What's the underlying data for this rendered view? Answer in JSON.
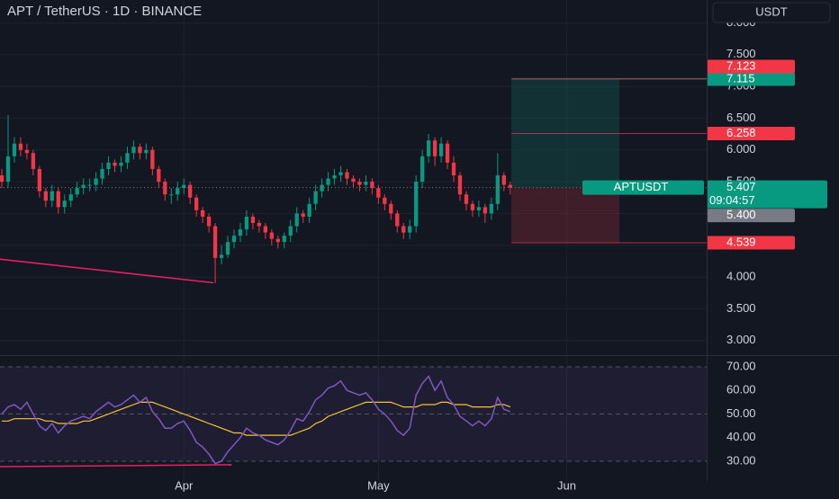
{
  "chart_data": {
    "type": "candlestick",
    "title": "APT / TetherUS · 1D · BINANCE",
    "currency": "USDT",
    "up_color": "#089981",
    "down_color": "#f23645",
    "grid": true,
    "xlim": [
      -0.29,
      112.3
    ],
    "xticks": [
      {
        "value": 29,
        "label": "Apr"
      },
      {
        "value": 60,
        "label": "May"
      },
      {
        "value": 90,
        "label": "Jun"
      }
    ],
    "ylim": [
      2.77,
      8.36
    ],
    "yticks": [
      {
        "value": 3,
        "label": "3.000"
      },
      {
        "value": 3.5,
        "label": "3.500"
      },
      {
        "value": 4,
        "label": "4.000"
      },
      {
        "value": 4.5,
        "label": "4.500"
      },
      {
        "value": 5,
        "label": "5.000"
      },
      {
        "value": 5.5,
        "label": "5.500"
      },
      {
        "value": 6,
        "label": "6.000"
      },
      {
        "value": 6.5,
        "label": "6.500"
      },
      {
        "value": 7,
        "label": "7.000"
      },
      {
        "value": 7.5,
        "label": "7.500"
      },
      {
        "value": 8,
        "label": "8.000"
      }
    ],
    "open": [
      5.6,
      5.5,
      5.9,
      6.1,
      6.0,
      5.95,
      5.7,
      5.35,
      5.2,
      5.35,
      5.1,
      5.2,
      5.3,
      5.4,
      5.45,
      5.45,
      5.55,
      5.7,
      5.8,
      5.75,
      5.8,
      5.95,
      6.05,
      5.95,
      6.0,
      5.7,
      5.5,
      5.3,
      5.3,
      5.4,
      5.45,
      5.25,
      5.05,
      4.95,
      4.8,
      4.3,
      4.35,
      4.55,
      4.65,
      4.75,
      4.95,
      4.85,
      4.8,
      4.7,
      4.6,
      4.55,
      4.65,
      4.8,
      5.0,
      4.95,
      5.15,
      5.35,
      5.45,
      5.55,
      5.6,
      5.65,
      5.55,
      5.5,
      5.45,
      5.5,
      5.4,
      5.25,
      5.15,
      5.0,
      4.8,
      4.7,
      4.8,
      5.5,
      5.9,
      6.15,
      5.9,
      6.1,
      5.8,
      5.6,
      5.3,
      5.15,
      5.05,
      5.1,
      5.0,
      5.15,
      5.6,
      5.45
    ],
    "high": [
      5.7,
      6.55,
      6.2,
      6.2,
      6.1,
      6.0,
      5.75,
      5.4,
      5.45,
      5.4,
      5.3,
      5.4,
      5.5,
      5.55,
      5.55,
      5.65,
      5.8,
      5.9,
      5.85,
      5.9,
      6.05,
      6.15,
      6.1,
      6.1,
      6.05,
      5.75,
      5.55,
      5.4,
      5.5,
      5.55,
      5.5,
      5.3,
      5.1,
      5.0,
      4.85,
      4.5,
      4.65,
      4.75,
      4.85,
      5.05,
      5.0,
      4.9,
      4.85,
      4.75,
      4.65,
      4.7,
      4.9,
      5.1,
      5.05,
      5.25,
      5.45,
      5.55,
      5.65,
      5.7,
      5.75,
      5.7,
      5.6,
      5.55,
      5.6,
      5.55,
      5.45,
      5.3,
      5.2,
      5.05,
      4.85,
      4.9,
      5.6,
      6.0,
      6.25,
      6.2,
      6.2,
      6.15,
      5.9,
      5.65,
      5.35,
      5.2,
      5.2,
      5.15,
      5.25,
      5.95,
      5.65,
      5.5
    ],
    "low": [
      5.4,
      5.4,
      5.8,
      5.9,
      5.85,
      5.6,
      5.25,
      5.1,
      5.1,
      5.0,
      5.0,
      5.1,
      5.25,
      5.3,
      5.35,
      5.35,
      5.45,
      5.6,
      5.65,
      5.65,
      5.7,
      5.85,
      5.85,
      5.85,
      5.6,
      5.4,
      5.2,
      5.15,
      5.2,
      5.3,
      5.15,
      4.95,
      4.85,
      4.7,
      3.9,
      4.2,
      4.3,
      4.45,
      4.55,
      4.65,
      4.75,
      4.7,
      4.6,
      4.5,
      4.45,
      4.45,
      4.55,
      4.7,
      4.85,
      4.85,
      5.05,
      5.25,
      5.35,
      5.45,
      5.5,
      5.45,
      5.4,
      5.35,
      5.35,
      5.3,
      5.15,
      5.05,
      4.9,
      4.7,
      4.6,
      4.6,
      4.7,
      5.4,
      5.8,
      5.75,
      5.8,
      5.7,
      5.5,
      5.2,
      5.05,
      4.95,
      4.95,
      4.85,
      4.9,
      5.05,
      5.35,
      5.3
    ],
    "close": [
      5.5,
      5.9,
      6.1,
      6.0,
      5.95,
      5.7,
      5.35,
      5.2,
      5.35,
      5.1,
      5.2,
      5.3,
      5.4,
      5.45,
      5.45,
      5.55,
      5.7,
      5.8,
      5.75,
      5.8,
      5.95,
      6.05,
      5.95,
      6.0,
      5.7,
      5.5,
      5.3,
      5.3,
      5.4,
      5.45,
      5.25,
      5.05,
      4.95,
      4.8,
      4.3,
      4.35,
      4.55,
      4.65,
      4.75,
      4.95,
      4.85,
      4.8,
      4.7,
      4.6,
      4.55,
      4.65,
      4.8,
      5.0,
      4.95,
      5.15,
      5.35,
      5.45,
      5.55,
      5.6,
      5.65,
      5.55,
      5.5,
      5.45,
      5.5,
      5.4,
      5.25,
      5.15,
      5.0,
      4.8,
      4.7,
      4.8,
      5.5,
      5.9,
      6.15,
      5.9,
      6.1,
      5.8,
      5.6,
      5.3,
      5.15,
      5.05,
      5.1,
      5.0,
      5.15,
      5.6,
      5.45,
      5.407
    ],
    "last_price": {
      "symbol": "APTUSDT",
      "value": 5.407,
      "countdown": "09:04:57",
      "color": "#089981"
    },
    "price_labels": [
      {
        "value": 7.115,
        "color": "#089981"
      },
      {
        "value": 7.123,
        "color": "#f23645"
      },
      {
        "value": 6.258,
        "color": "#f23645"
      },
      {
        "value": 5.4,
        "label": "5.400",
        "color": "#787b86"
      },
      {
        "value": 4.539,
        "color": "#f23645"
      }
    ],
    "position": {
      "x": [
        81.2,
        98.4
      ],
      "entry": 5.407,
      "target": 7.115,
      "stop": 4.539
    },
    "drawings": [
      {
        "pane": "price",
        "x": [
          -0.3,
          33.7
        ],
        "y": [
          4.28,
          3.91
        ],
        "color": "#e91e63"
      },
      {
        "pane": "rsi",
        "x": [
          -0.3,
          36.6
        ],
        "y": [
          27.7,
          28.5
        ],
        "color": "#e91e63"
      }
    ],
    "rsi": {
      "color": "#7e57c2",
      "ma_color": "#f7c531",
      "ylim": [
        21.6,
        74.95
      ],
      "yticks": [
        {
          "value": 30,
          "label": "30.00"
        },
        {
          "value": 40,
          "label": "40.00"
        },
        {
          "value": 50,
          "label": "50.00"
        },
        {
          "value": 60,
          "label": "60.00"
        },
        {
          "value": 70,
          "label": "70.00"
        }
      ],
      "dashed_levels": [
        70,
        50,
        30
      ],
      "values": [
        50,
        53,
        54,
        52,
        55,
        50,
        45,
        43,
        46,
        42,
        45,
        47,
        48,
        49,
        48,
        51,
        53,
        55,
        53,
        54,
        56,
        58,
        55,
        57,
        51,
        48,
        44,
        44,
        46,
        47,
        43,
        38,
        36,
        33,
        29,
        30,
        34,
        37,
        40,
        44,
        42,
        41,
        39,
        38,
        37,
        39,
        43,
        48,
        47,
        51,
        56,
        58,
        61,
        62,
        64,
        60,
        59,
        58,
        59,
        56,
        52,
        50,
        47,
        43,
        41,
        44,
        58,
        63,
        66,
        60,
        64,
        57,
        54,
        49,
        47,
        45,
        47,
        45,
        48,
        57,
        52,
        51
      ],
      "ma": [
        47,
        47,
        48,
        48,
        48,
        48,
        48,
        47,
        47,
        46,
        46,
        46,
        46,
        47,
        47,
        48,
        49,
        50,
        51,
        52,
        53,
        54,
        55,
        55,
        55,
        54,
        53,
        52,
        51,
        50,
        49,
        48,
        47,
        46,
        45,
        44,
        43,
        42,
        42,
        41,
        41,
        41,
        41,
        41,
        41,
        41,
        41,
        42,
        43,
        44,
        46,
        47,
        49,
        50,
        51,
        52,
        53,
        54,
        55,
        55,
        55,
        55,
        55,
        54,
        53,
        53,
        53,
        54,
        54,
        54,
        55,
        55,
        54,
        54,
        54,
        53,
        53,
        53,
        53,
        54,
        54,
        53
      ]
    }
  }
}
